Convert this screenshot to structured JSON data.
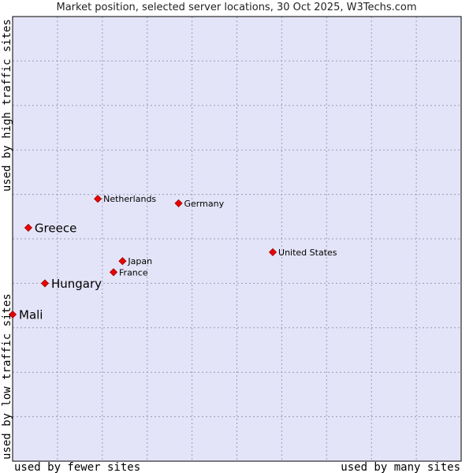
{
  "chart_data": {
    "type": "scatter",
    "title": "Market position, selected server locations, 30 Oct 2025, W3Techs.com",
    "xlabel_low": "used by fewer sites",
    "xlabel_high": "used by many sites",
    "ylabel_low": "used by low traffic sites",
    "ylabel_high": "used by high traffic sites",
    "xlim": [
      0,
      10
    ],
    "ylim": [
      0,
      10
    ],
    "grid": true,
    "colors": {
      "plot_background": "#e4e4f8",
      "grid": "#9a9ab8",
      "marker": "#ee0000",
      "marker_stroke": "#990000"
    },
    "points": [
      {
        "label": "Netherlands",
        "x": 1.9,
        "y": 5.9,
        "emphasis": false
      },
      {
        "label": "Germany",
        "x": 3.7,
        "y": 5.8,
        "emphasis": false
      },
      {
        "label": "Greece",
        "x": 0.35,
        "y": 5.25,
        "emphasis": true
      },
      {
        "label": "United States",
        "x": 5.8,
        "y": 4.7,
        "emphasis": false
      },
      {
        "label": "Japan",
        "x": 2.45,
        "y": 4.5,
        "emphasis": false
      },
      {
        "label": "France",
        "x": 2.25,
        "y": 4.25,
        "emphasis": false
      },
      {
        "label": "Hungary",
        "x": 0.72,
        "y": 4.0,
        "emphasis": true
      },
      {
        "label": "Mali",
        "x": 0.0,
        "y": 3.3,
        "emphasis": true
      }
    ]
  }
}
